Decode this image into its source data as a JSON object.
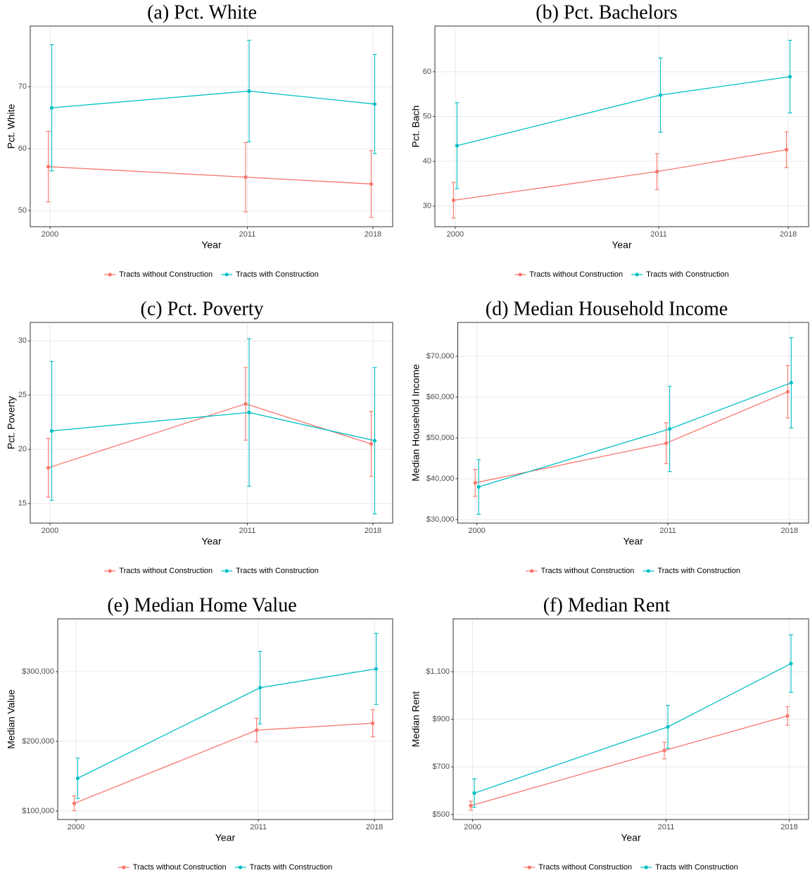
{
  "chart_data": [
    {
      "type": "line",
      "title": "(a) Pct. White",
      "x_label": "Year",
      "y_label": "Pct. White",
      "x": [
        2000,
        2011,
        2018
      ],
      "xlim": [
        1998.9,
        2019.1
      ],
      "xticks": [
        2000,
        2011,
        2018
      ],
      "ylim": [
        47.4,
        79.8
      ],
      "yticks": [
        50,
        60,
        70
      ],
      "grid": true,
      "legend": "bottom",
      "series": [
        {
          "name": "Tracts without Construction",
          "color": "#F8766D",
          "values": [
            57.1,
            55.4,
            54.3
          ],
          "errors": [
            5.7,
            5.6,
            5.4
          ]
        },
        {
          "name": "Tracts with Construction",
          "color": "#00BFC4",
          "values": [
            66.6,
            69.3,
            67.2
          ],
          "errors": [
            10.2,
            8.2,
            8.0
          ]
        }
      ]
    },
    {
      "type": "line",
      "title": "(b) Pct. Bachelors",
      "x_label": "Year",
      "y_label": "Pct. Bach",
      "x": [
        2000,
        2011,
        2018
      ],
      "xlim": [
        1998.9,
        2019.1
      ],
      "xticks": [
        2000,
        2011,
        2018
      ],
      "ylim": [
        25.4,
        70.2
      ],
      "yticks": [
        30,
        40,
        50,
        60
      ],
      "grid": true,
      "legend": "bottom",
      "series": [
        {
          "name": "Tracts without Construction",
          "color": "#F8766D",
          "values": [
            31.3,
            37.7,
            42.6
          ],
          "errors": [
            4,
            4,
            4
          ]
        },
        {
          "name": "Tracts with Construction",
          "color": "#00BFC4",
          "values": [
            43.5,
            54.8,
            58.9
          ],
          "errors": [
            9.6,
            8.3,
            8.1
          ]
        }
      ]
    },
    {
      "type": "line",
      "title": "(c) Pct. Poverty",
      "x_label": "Year",
      "y_label": "Pct. Poverty",
      "x": [
        2000,
        2011,
        2018
      ],
      "xlim": [
        1998.9,
        2019.1
      ],
      "xticks": [
        2000,
        2011,
        2018
      ],
      "ylim": [
        13.2,
        31.7
      ],
      "yticks": [
        15,
        20,
        25,
        30
      ],
      "grid": true,
      "legend": "bottom",
      "series": [
        {
          "name": "Tracts without Construction",
          "color": "#F8766D",
          "values": [
            18.3,
            24.2,
            20.5
          ],
          "errors": [
            2.7,
            3.35,
            3.0
          ]
        },
        {
          "name": "Tracts with Construction",
          "color": "#00BFC4",
          "values": [
            21.7,
            23.4,
            20.8
          ],
          "errors": [
            6.4,
            6.8,
            6.75
          ]
        }
      ]
    },
    {
      "type": "line",
      "title": "(d) Median Household Income",
      "x_label": "Year",
      "y_label": "Median Household Income",
      "x": [
        2000,
        2011,
        2018
      ],
      "xlim": [
        1998.9,
        2019.1
      ],
      "xticks": [
        2000,
        2011,
        2018
      ],
      "ylim": [
        29138,
        78276
      ],
      "yticks": [
        {
          "value": 30000,
          "label": "$30,000"
        },
        {
          "value": 40000,
          "label": "$40,000"
        },
        {
          "value": 50000,
          "label": "$50,000"
        },
        {
          "value": 60000,
          "label": "$60,000"
        },
        {
          "value": 70000,
          "label": "$70,000"
        }
      ],
      "grid": true,
      "legend": "bottom",
      "series": [
        {
          "name": "Tracts without Construction",
          "color": "#F8766D",
          "values": [
            39000,
            48700,
            61300
          ],
          "errors": [
            3300,
            5000,
            6400
          ]
        },
        {
          "name": "Tracts with Construction",
          "color": "#00BFC4",
          "values": [
            38000,
            52200,
            63500
          ],
          "errors": [
            6700,
            10450,
            11050
          ]
        }
      ]
    },
    {
      "type": "line",
      "title": "(e) Median Home Value",
      "x_label": "Year",
      "y_label": "Median Value",
      "x": [
        2000,
        2011,
        2018
      ],
      "xlim": [
        1998.9,
        2019.1
      ],
      "xticks": [
        2000,
        2011,
        2018
      ],
      "ylim": [
        87879,
        375758
      ],
      "yticks": [
        {
          "value": 100000,
          "label": "$100,000"
        },
        {
          "value": 200000,
          "label": "$200,000"
        },
        {
          "value": 300000,
          "label": "$300,000"
        }
      ],
      "grid": true,
      "legend": "bottom",
      "series": [
        {
          "name": "Tracts without Construction",
          "color": "#F8766D",
          "values": [
            111000,
            216000,
            226000
          ],
          "errors": [
            10500,
            17000,
            19500
          ]
        },
        {
          "name": "Tracts with Construction",
          "color": "#00BFC4",
          "values": [
            147000,
            277000,
            304000
          ],
          "errors": [
            29000,
            52000,
            51000
          ]
        }
      ]
    },
    {
      "type": "line",
      "title": "(f) Median Rent",
      "x_label": "Year",
      "y_label": "Median Rent",
      "x": [
        2000,
        2011,
        2018
      ],
      "xlim": [
        1998.9,
        2019.1
      ],
      "xticks": [
        2000,
        2011,
        2018
      ],
      "ylim": [
        479,
        1322
      ],
      "yticks": [
        {
          "value": 500,
          "label": "$500"
        },
        {
          "value": 700,
          "label": "$700"
        },
        {
          "value": 900,
          "label": "$900"
        },
        {
          "value": 1100,
          "label": "$1,100"
        }
      ],
      "grid": true,
      "legend": "bottom",
      "series": [
        {
          "name": "Tracts without Construction",
          "color": "#F8766D",
          "values": [
            537,
            769,
            914
          ],
          "errors": [
            19,
            35,
            39
          ]
        },
        {
          "name": "Tracts with Construction",
          "color": "#00BFC4",
          "values": [
            590,
            868,
            1134
          ],
          "errors": [
            60,
            90,
            121
          ]
        }
      ]
    }
  ]
}
